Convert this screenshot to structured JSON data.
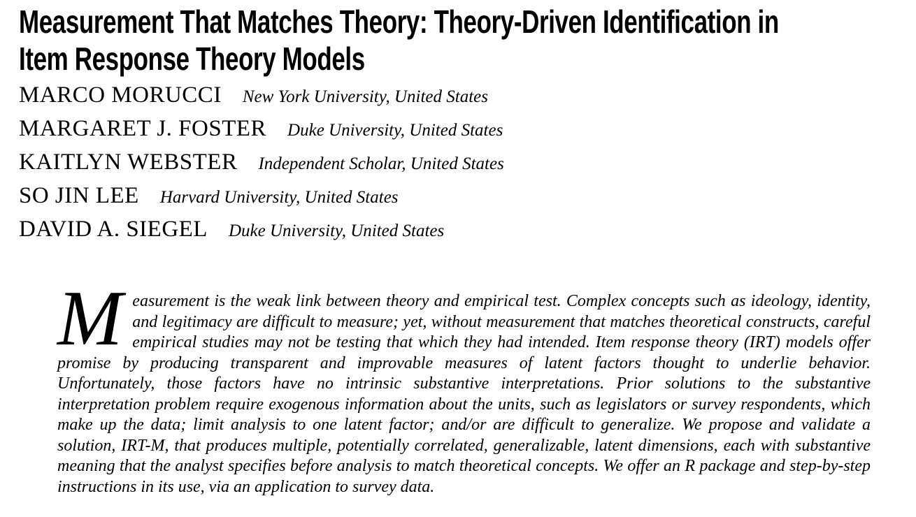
{
  "paper": {
    "title": "Measurement That Matches Theory: Theory-Driven Identification in Item Response Theory Models",
    "title_lines": [
      "Measurement That Matches Theory: Theory-Driven Identification in",
      "Item Response Theory Models"
    ],
    "authors": [
      {
        "name": "MARCO MORUCCI",
        "affiliation": "New York University, United States"
      },
      {
        "name": "MARGARET J. FOSTER",
        "affiliation": "Duke University, United States"
      },
      {
        "name": "KAITLYN WEBSTER",
        "affiliation": "Independent Scholar, United States"
      },
      {
        "name": "SO JIN LEE",
        "affiliation": "Harvard University, United States"
      },
      {
        "name": "DAVID A. SIEGEL",
        "affiliation": "Duke University, United States"
      }
    ],
    "abstract": {
      "drop_cap": "M",
      "text": "easurement is the weak link between theory and empirical test. Complex concepts such as ideology, identity, and legitimacy are difficult to measure; yet, without measurement that matches theoretical constructs, careful empirical studies may not be testing that which they had intended. Item response theory (IRT) models offer promise by producing transparent and improvable measures of latent factors thought to underlie behavior. Unfortunately, those factors have no intrinsic substantive interpretations. Prior solutions to the substantive interpretation problem require exogenous information about the units, such as legislators or survey respondents, which make up the data; limit analysis to one latent factor; and/or are difficult to generalize. We propose and validate a solution, IRT-M, that produces multiple, potentially correlated, generalizable, latent dimensions, each with substantive meaning that the analyst specifies before analysis to match theoretical concepts. We offer an R package and step-by-step instructions in its use, via an application to survey data."
    },
    "colors": {
      "text": "#000000",
      "background": "#ffffff"
    }
  }
}
